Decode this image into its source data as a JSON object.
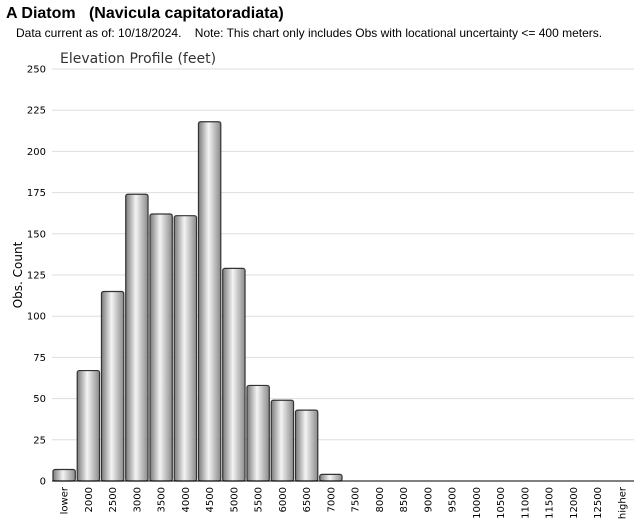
{
  "header": {
    "title": "A Diatom   (Navicula capitatoradiata)",
    "note": "Data current as of: 10/18/2024.    Note: This chart only includes Obs with locational uncertainty <= 400 meters."
  },
  "chart_data": {
    "type": "bar",
    "title": "Elevation Profile (feet)",
    "xlabel": "",
    "ylabel": "Obs. Count",
    "categories": [
      "lower",
      "2000",
      "2500",
      "3000",
      "3500",
      "4000",
      "4500",
      "5000",
      "5500",
      "6000",
      "6500",
      "7000",
      "7500",
      "8000",
      "8500",
      "9000",
      "9500",
      "10000",
      "10500",
      "11000",
      "11500",
      "12000",
      "12500",
      "higher"
    ],
    "values": [
      7,
      67,
      115,
      174,
      162,
      161,
      218,
      129,
      58,
      49,
      43,
      4,
      0,
      0,
      0,
      0,
      0,
      0,
      0,
      0,
      0,
      0,
      0,
      0
    ],
    "ylim": [
      0,
      250
    ],
    "yticks": [
      0,
      25,
      50,
      75,
      100,
      125,
      150,
      175,
      200,
      225,
      250
    ],
    "grid": true,
    "bar_color": "#c8c8c8"
  }
}
